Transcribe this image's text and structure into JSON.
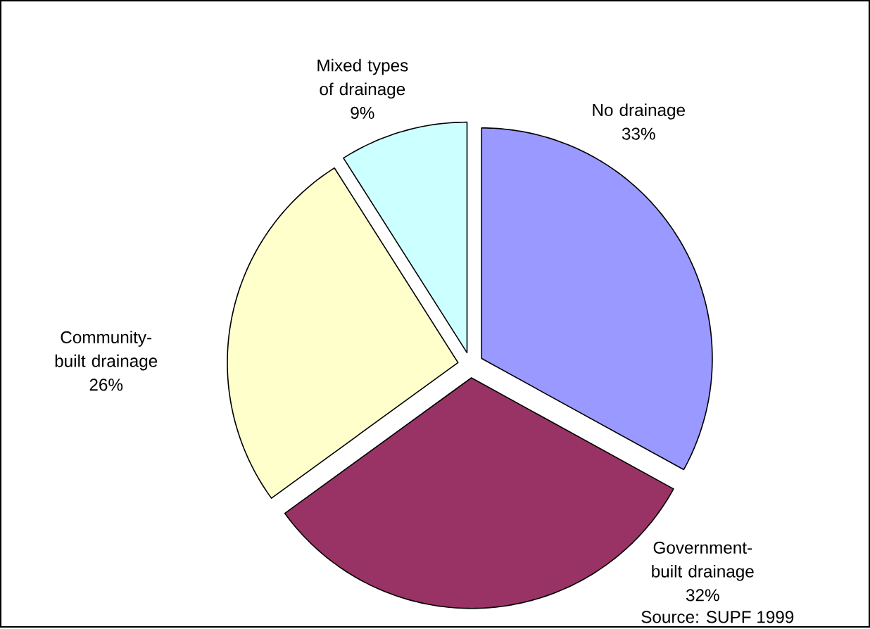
{
  "chart_data": {
    "type": "pie",
    "categories": [
      "No drainage",
      "Government-built drainage",
      "Community-built drainage",
      "Mixed types of drainage"
    ],
    "values": [
      33,
      32,
      26,
      9
    ],
    "value_labels": [
      "33%",
      "32%",
      "26%",
      "9%"
    ],
    "colors": [
      "#9999ff",
      "#993366",
      "#ffffcc",
      "#ccffff"
    ],
    "annotations": [
      "Source: SUPF 1999"
    ]
  }
}
